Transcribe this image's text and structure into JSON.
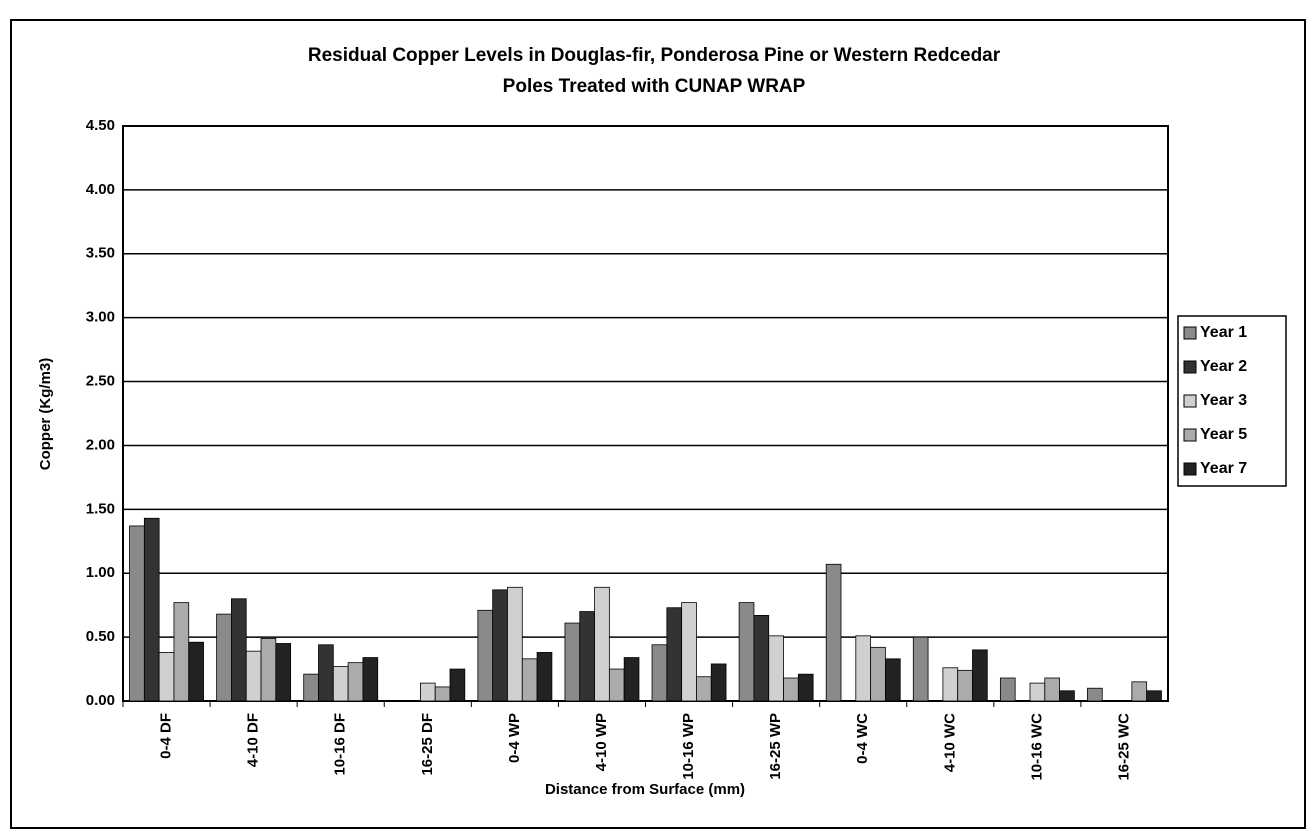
{
  "chart_data": {
    "type": "bar",
    "title": [
      "Residual Copper Levels in Douglas-fir, Ponderosa Pine or Western Redcedar",
      "Poles Treated with CUNAP WRAP"
    ],
    "xlabel": "Distance from Surface (mm)",
    "ylabel": "Copper (Kg/m3)",
    "categories": [
      "0-4 DF",
      "4-10 DF",
      "10-16 DF",
      "16-25 DF",
      "0-4 WP",
      "4-10 WP",
      "10-16 WP",
      "16-25 WP",
      "0-4 WC",
      "4-10 WC",
      "10-16 WC",
      "16-25 WC"
    ],
    "series": [
      {
        "name": "Year 1",
        "color": "#8a8a8a",
        "values": [
          1.37,
          0.68,
          0.21,
          0,
          0.71,
          0.61,
          0.44,
          0.77,
          1.07,
          0.5,
          0.18,
          0.1
        ]
      },
      {
        "name": "Year 2",
        "color": "#333333",
        "values": [
          1.43,
          0.8,
          0.44,
          0,
          0.87,
          0.7,
          0.73,
          0.67,
          0,
          0,
          0,
          0
        ]
      },
      {
        "name": "Year 3",
        "color": "#d0d0d0",
        "values": [
          0.38,
          0.39,
          0.27,
          0.14,
          0.89,
          0.89,
          0.77,
          0.51,
          0.51,
          0.26,
          0.14,
          0
        ]
      },
      {
        "name": "Year 5",
        "color": "#ababab",
        "values": [
          0.77,
          0.49,
          0.3,
          0.11,
          0.33,
          0.25,
          0.19,
          0.18,
          0.42,
          0.24,
          0.18,
          0.15
        ]
      },
      {
        "name": "Year 7",
        "color": "#222222",
        "values": [
          0.46,
          0.45,
          0.34,
          0.25,
          0.38,
          0.34,
          0.29,
          0.21,
          0.33,
          0.4,
          0.08,
          0.08
        ]
      }
    ],
    "ylim": [
      0,
      4.5
    ],
    "yticks": [
      {
        "value": 0,
        "label": "0.00"
      },
      {
        "value": 0.5,
        "label": "0.50"
      },
      {
        "value": 1,
        "label": "1.00"
      },
      {
        "value": 1.5,
        "label": "1.50"
      },
      {
        "value": 2,
        "label": "2.00"
      },
      {
        "value": 2.5,
        "label": "2.50"
      },
      {
        "value": 3,
        "label": "3.00"
      },
      {
        "value": 3.5,
        "label": "3.50"
      },
      {
        "value": 4,
        "label": "4.00"
      },
      {
        "value": 4.5,
        "label": "4.50"
      }
    ],
    "grid": true,
    "legend": "right"
  }
}
